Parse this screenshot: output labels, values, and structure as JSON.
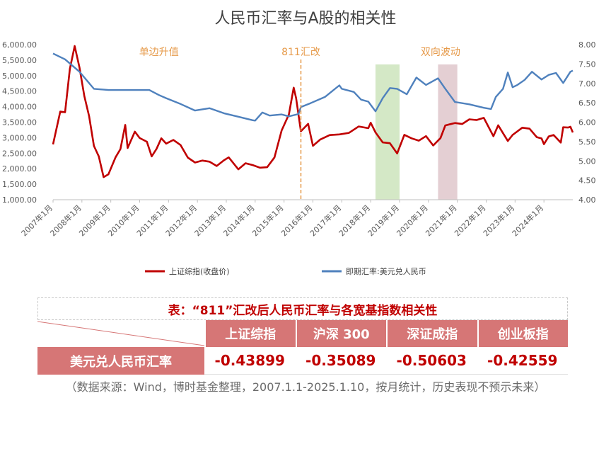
{
  "chart_data": {
    "type": "line",
    "title": "人民币汇率与A股的相关性",
    "x_ticks": [
      "2007年1月",
      "2008年1月",
      "2009年1月",
      "2010年1月",
      "2011年1月",
      "2012年1月",
      "2013年1月",
      "2014年1月",
      "2015年1月",
      "2016年1月",
      "2017年1月",
      "2018年1月",
      "2019年1月",
      "2020年1月",
      "2021年1月",
      "2022年1月",
      "2023年1月",
      "2024年1月"
    ],
    "x_range": [
      "2007-01",
      "2025-01"
    ],
    "y_left": {
      "ticks": [
        "1,000.00",
        "1,500.00",
        "2,000.00",
        "2,500.00",
        "3,000.00",
        "3,500.00",
        "4,000.00",
        "4,500.00",
        "5,000.00",
        "5,500.00",
        "6,000.00"
      ],
      "range": [
        1000,
        6000
      ]
    },
    "y_right": {
      "ticks": [
        "4.00",
        "4.50",
        "5.00",
        "5.50",
        "6.00",
        "6.50",
        "7.00",
        "7.50",
        "8.00"
      ],
      "range": [
        4.0,
        8.0
      ]
    },
    "series": [
      {
        "name": "上证综指(收盘价)",
        "axis": "left",
        "color": "#c00000",
        "points": [
          [
            "2007-01",
            2786
          ],
          [
            "2007-04",
            3841
          ],
          [
            "2007-06",
            3820
          ],
          [
            "2007-08",
            5218
          ],
          [
            "2007-10",
            5954
          ],
          [
            "2007-12",
            5261
          ],
          [
            "2008-02",
            4348
          ],
          [
            "2008-04",
            3693
          ],
          [
            "2008-06",
            2736
          ],
          [
            "2008-08",
            2397
          ],
          [
            "2008-10",
            1728
          ],
          [
            "2008-12",
            1820
          ],
          [
            "2009-03",
            2373
          ],
          [
            "2009-05",
            2632
          ],
          [
            "2009-07",
            3412
          ],
          [
            "2009-08",
            2667
          ],
          [
            "2009-11",
            3195
          ],
          [
            "2010-01",
            2989
          ],
          [
            "2010-04",
            2870
          ],
          [
            "2010-06",
            2398
          ],
          [
            "2010-08",
            2638
          ],
          [
            "2010-10",
            2979
          ],
          [
            "2010-12",
            2808
          ],
          [
            "2011-03",
            2928
          ],
          [
            "2011-06",
            2762
          ],
          [
            "2011-09",
            2359
          ],
          [
            "2011-12",
            2199
          ],
          [
            "2012-03",
            2262
          ],
          [
            "2012-06",
            2225
          ],
          [
            "2012-09",
            2086
          ],
          [
            "2012-12",
            2269
          ],
          [
            "2013-02",
            2365
          ],
          [
            "2013-06",
            1979
          ],
          [
            "2013-09",
            2175
          ],
          [
            "2013-12",
            2116
          ],
          [
            "2014-03",
            2033
          ],
          [
            "2014-06",
            2048
          ],
          [
            "2014-09",
            2364
          ],
          [
            "2014-12",
            3235
          ],
          [
            "2015-03",
            3748
          ],
          [
            "2015-05",
            4612
          ],
          [
            "2015-06",
            4277
          ],
          [
            "2015-08",
            3206
          ],
          [
            "2015-11",
            3445
          ],
          [
            "2016-01",
            2738
          ],
          [
            "2016-04",
            2938
          ],
          [
            "2016-08",
            3085
          ],
          [
            "2016-12",
            3104
          ],
          [
            "2017-04",
            3155
          ],
          [
            "2017-08",
            3360
          ],
          [
            "2017-12",
            3307
          ],
          [
            "2018-01",
            3481
          ],
          [
            "2018-03",
            3169
          ],
          [
            "2018-06",
            2847
          ],
          [
            "2018-09",
            2821
          ],
          [
            "2018-12",
            2494
          ],
          [
            "2019-03",
            3091
          ],
          [
            "2019-06",
            2979
          ],
          [
            "2019-09",
            2905
          ],
          [
            "2019-12",
            3050
          ],
          [
            "2020-03",
            2750
          ],
          [
            "2020-06",
            2985
          ],
          [
            "2020-08",
            3396
          ],
          [
            "2020-12",
            3473
          ],
          [
            "2021-03",
            3441
          ],
          [
            "2021-06",
            3591
          ],
          [
            "2021-09",
            3568
          ],
          [
            "2021-12",
            3640
          ],
          [
            "2022-04",
            3047
          ],
          [
            "2022-06",
            3399
          ],
          [
            "2022-10",
            2893
          ],
          [
            "2022-12",
            3089
          ],
          [
            "2023-04",
            3323
          ],
          [
            "2023-07",
            3291
          ],
          [
            "2023-10",
            3018
          ],
          [
            "2023-12",
            2975
          ],
          [
            "2024-01",
            2789
          ],
          [
            "2024-03",
            3041
          ],
          [
            "2024-05",
            3087
          ],
          [
            "2024-08",
            2842
          ],
          [
            "2024-09",
            3336
          ],
          [
            "2024-11",
            3326
          ],
          [
            "2024-12",
            3352
          ],
          [
            "2025-01",
            3168
          ]
        ]
      },
      {
        "name": "即期汇率:美元兑人民币",
        "axis": "right",
        "color": "#4f81bd",
        "points": [
          [
            "2007-01",
            7.77
          ],
          [
            "2007-06",
            7.62
          ],
          [
            "2007-12",
            7.3
          ],
          [
            "2008-06",
            6.86
          ],
          [
            "2008-12",
            6.83
          ],
          [
            "2009-06",
            6.83
          ],
          [
            "2009-12",
            6.83
          ],
          [
            "2010-05",
            6.83
          ],
          [
            "2010-09",
            6.7
          ],
          [
            "2010-12",
            6.62
          ],
          [
            "2011-06",
            6.47
          ],
          [
            "2011-12",
            6.3
          ],
          [
            "2012-06",
            6.36
          ],
          [
            "2012-12",
            6.23
          ],
          [
            "2013-06",
            6.14
          ],
          [
            "2013-12",
            6.05
          ],
          [
            "2014-01",
            6.04
          ],
          [
            "2014-04",
            6.25
          ],
          [
            "2014-07",
            6.17
          ],
          [
            "2014-12",
            6.2
          ],
          [
            "2015-03",
            6.15
          ],
          [
            "2015-07",
            6.21
          ],
          [
            "2015-08",
            6.39
          ],
          [
            "2015-12",
            6.49
          ],
          [
            "2016-06",
            6.65
          ],
          [
            "2016-12",
            6.95
          ],
          [
            "2017-01",
            6.86
          ],
          [
            "2017-06",
            6.78
          ],
          [
            "2017-09",
            6.58
          ],
          [
            "2017-12",
            6.53
          ],
          [
            "2018-03",
            6.28
          ],
          [
            "2018-06",
            6.62
          ],
          [
            "2018-09",
            6.88
          ],
          [
            "2018-12",
            6.86
          ],
          [
            "2019-04",
            6.72
          ],
          [
            "2019-08",
            7.15
          ],
          [
            "2019-12",
            6.96
          ],
          [
            "2020-05",
            7.13
          ],
          [
            "2020-08",
            6.86
          ],
          [
            "2020-12",
            6.52
          ],
          [
            "2021-06",
            6.46
          ],
          [
            "2021-12",
            6.37
          ],
          [
            "2022-03",
            6.34
          ],
          [
            "2022-05",
            6.65
          ],
          [
            "2022-08",
            6.86
          ],
          [
            "2022-10",
            7.28
          ],
          [
            "2022-12",
            6.9
          ],
          [
            "2023-02",
            6.96
          ],
          [
            "2023-05",
            7.09
          ],
          [
            "2023-08",
            7.3
          ],
          [
            "2023-12",
            7.1
          ],
          [
            "2024-03",
            7.22
          ],
          [
            "2024-06",
            7.27
          ],
          [
            "2024-09",
            7.01
          ],
          [
            "2024-12",
            7.3
          ],
          [
            "2025-01",
            7.33
          ]
        ]
      }
    ],
    "annotations": [
      {
        "text": "单边升值",
        "x": "2010-09"
      },
      {
        "text": "811汇改",
        "x": "2015-08",
        "line": true
      },
      {
        "text": "双向波动",
        "x": "2020-06"
      }
    ],
    "shaded_ranges": [
      {
        "from": "2018-03",
        "to": "2019-01",
        "color": "#a9d18e"
      },
      {
        "from": "2020-05",
        "to": "2021-01",
        "color": "#c9a0a8"
      }
    ],
    "legend_position": "bottom"
  },
  "table": {
    "title": "表：“811”汇改后人民币汇率与各宽基指数相关性",
    "columns": [
      "上证综指",
      "沪深 300",
      "深证成指",
      "创业板指"
    ],
    "row_label": "美元兑人民币汇率",
    "values": [
      "-0.43899",
      "-0.35089",
      "-0.50603",
      "-0.42559"
    ]
  },
  "source_note": "（数据来源：Wind，博时基金整理，2007.1.1-2025.1.10，按月统计，历史表现不预示未来）",
  "colors": {
    "red": "#c00000",
    "blue": "#4f81bd",
    "annotation": "#e69a4a",
    "table_header": "#d67676"
  }
}
